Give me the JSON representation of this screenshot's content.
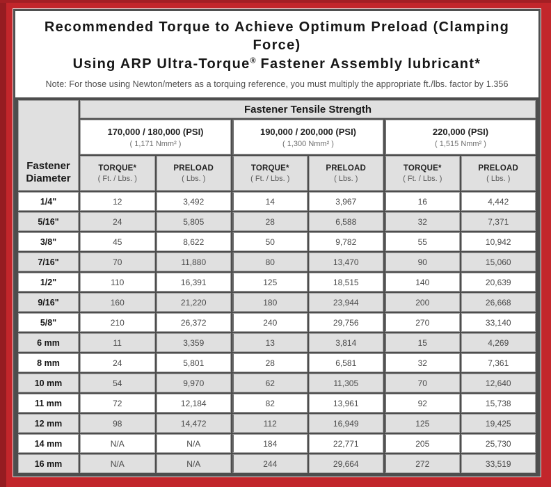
{
  "colors": {
    "frame_red": "#c2262b",
    "frame_red_dark": "#951c21",
    "border_dark": "#4f4f4f",
    "cell_gray": "#e0e0e0",
    "cell_white": "#ffffff"
  },
  "header": {
    "title_line1": "Recommended Torque to Achieve Optimum Preload (Clamping Force)",
    "title_line2_pre": "Using ARP Ultra-Torque",
    "title_trademark": "®",
    "title_line2_post": " Fastener Assembly lubricant*",
    "note": "Note: For those using Newton/meters as a torquing reference, you must multiply the appropriate ft./lbs. factor by 1.356"
  },
  "table": {
    "corner_line1": "Fastener",
    "corner_line2": "Diameter",
    "tensile_header": "Fastener Tensile Strength",
    "groups": [
      {
        "psi": "170,000 / 180,000 (PSI)",
        "nmm": "( 1,171 Nmm² )"
      },
      {
        "psi": "190,000 / 200,000 (PSI)",
        "nmm": "( 1,300 Nmm² )"
      },
      {
        "psi": "220,000 (PSI)",
        "nmm": "( 1,515 Nmm² )"
      }
    ],
    "torque_label": "TORQUE*",
    "torque_sub": "( Ft. / Lbs. )",
    "preload_label": "PRELOAD",
    "preload_sub": "( Lbs. )",
    "rows": [
      {
        "d": "1/4\"",
        "v": [
          "12",
          "3,492",
          "14",
          "3,967",
          "16",
          "4,442"
        ]
      },
      {
        "d": "5/16\"",
        "v": [
          "24",
          "5,805",
          "28",
          "6,588",
          "32",
          "7,371"
        ]
      },
      {
        "d": "3/8\"",
        "v": [
          "45",
          "8,622",
          "50",
          "9,782",
          "55",
          "10,942"
        ]
      },
      {
        "d": "7/16\"",
        "v": [
          "70",
          "11,880",
          "80",
          "13,470",
          "90",
          "15,060"
        ]
      },
      {
        "d": "1/2\"",
        "v": [
          "110",
          "16,391",
          "125",
          "18,515",
          "140",
          "20,639"
        ]
      },
      {
        "d": "9/16\"",
        "v": [
          "160",
          "21,220",
          "180",
          "23,944",
          "200",
          "26,668"
        ]
      },
      {
        "d": "5/8\"",
        "v": [
          "210",
          "26,372",
          "240",
          "29,756",
          "270",
          "33,140"
        ]
      },
      {
        "d": "6 mm",
        "v": [
          "11",
          "3,359",
          "13",
          "3,814",
          "15",
          "4,269"
        ]
      },
      {
        "d": "8 mm",
        "v": [
          "24",
          "5,801",
          "28",
          "6,581",
          "32",
          "7,361"
        ]
      },
      {
        "d": "10 mm",
        "v": [
          "54",
          "9,970",
          "62",
          "11,305",
          "70",
          "12,640"
        ]
      },
      {
        "d": "11 mm",
        "v": [
          "72",
          "12,184",
          "82",
          "13,961",
          "92",
          "15,738"
        ]
      },
      {
        "d": "12 mm",
        "v": [
          "98",
          "14,472",
          "112",
          "16,949",
          "125",
          "19,425"
        ]
      },
      {
        "d": "14 mm",
        "v": [
          "N/A",
          "N/A",
          "184",
          "22,771",
          "205",
          "25,730"
        ]
      },
      {
        "d": "16 mm",
        "v": [
          "N/A",
          "N/A",
          "244",
          "29,664",
          "272",
          "33,519"
        ]
      }
    ]
  }
}
